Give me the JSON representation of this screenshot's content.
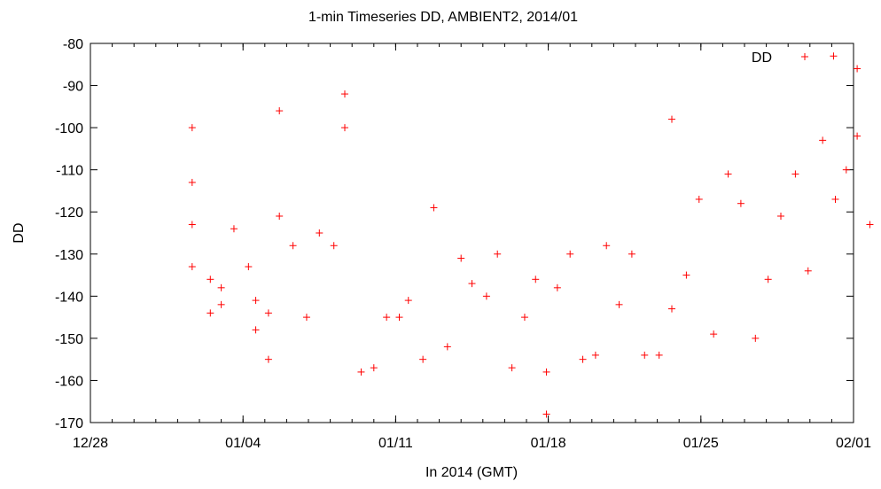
{
  "chart_data": {
    "type": "scatter",
    "title": "1-min Timeseries DD, AMBIENT2, 2014/01",
    "xlabel": "In 2014 (GMT)",
    "ylabel": "DD",
    "x_ticks": [
      "12/28",
      "01/04",
      "01/11",
      "01/18",
      "01/25",
      "02/01"
    ],
    "y_ticks": [
      -80,
      -90,
      -100,
      -110,
      -120,
      -130,
      -140,
      -150,
      -160,
      -170
    ],
    "xlim": [
      "2013-12-28",
      "2014-02-01"
    ],
    "ylim": [
      -170,
      -80
    ],
    "grid": false,
    "legend_position": "top-right",
    "marker": "+",
    "color": "#ff0000",
    "series": [
      {
        "name": "DD",
        "points": [
          {
            "x": "2014-01-01 16:00",
            "y": -133.0
          },
          {
            "x": "2014-01-01 16:00",
            "y": -113.0
          },
          {
            "x": "2014-01-01 16:00",
            "y": -100.0
          },
          {
            "x": "2014-01-01 16:00",
            "y": -123.0
          },
          {
            "x": "2014-01-02 12:00",
            "y": -144.0
          },
          {
            "x": "2014-01-02 12:00",
            "y": -136.0
          },
          {
            "x": "2014-01-03 00:00",
            "y": -138.0
          },
          {
            "x": "2014-01-03 00:00",
            "y": -142.0
          },
          {
            "x": "2014-01-03 14:00",
            "y": -124.0
          },
          {
            "x": "2014-01-04 06:00",
            "y": -133.0
          },
          {
            "x": "2014-01-04 14:00",
            "y": -141.0
          },
          {
            "x": "2014-01-04 14:00",
            "y": -148.0
          },
          {
            "x": "2014-01-05 04:00",
            "y": -155.0
          },
          {
            "x": "2014-01-05 04:00",
            "y": -144.0
          },
          {
            "x": "2014-01-05 16:00",
            "y": -121.0
          },
          {
            "x": "2014-01-05 16:00",
            "y": -96.0
          },
          {
            "x": "2014-01-06 07:00",
            "y": -128.0
          },
          {
            "x": "2014-01-06 22:00",
            "y": -145.0
          },
          {
            "x": "2014-01-07 12:00",
            "y": -125.0
          },
          {
            "x": "2014-01-08 04:00",
            "y": -128.0
          },
          {
            "x": "2014-01-08 16:00",
            "y": -92.0
          },
          {
            "x": "2014-01-08 16:00",
            "y": -100.0
          },
          {
            "x": "2014-01-09 10:00",
            "y": -158.0
          },
          {
            "x": "2014-01-10 00:00",
            "y": -157.0
          },
          {
            "x": "2014-01-10 14:00",
            "y": -145.0
          },
          {
            "x": "2014-01-11 04:00",
            "y": -145.0
          },
          {
            "x": "2014-01-11 14:00",
            "y": -141.0
          },
          {
            "x": "2014-01-12 06:00",
            "y": -155.0
          },
          {
            "x": "2014-01-12 18:00",
            "y": -119.0
          },
          {
            "x": "2014-01-13 09:00",
            "y": -152.0
          },
          {
            "x": "2014-01-14 00:00",
            "y": -131.0
          },
          {
            "x": "2014-01-14 12:00",
            "y": -137.0
          },
          {
            "x": "2014-01-15 04:00",
            "y": -140.0
          },
          {
            "x": "2014-01-15 16:00",
            "y": -130.0
          },
          {
            "x": "2014-01-16 08:00",
            "y": -157.0
          },
          {
            "x": "2014-01-16 22:00",
            "y": -145.0
          },
          {
            "x": "2014-01-17 10:00",
            "y": -136.0
          },
          {
            "x": "2014-01-17 22:00",
            "y": -158.0
          },
          {
            "x": "2014-01-17 22:00",
            "y": -168.0
          },
          {
            "x": "2014-01-18 10:00",
            "y": -138.0
          },
          {
            "x": "2014-01-19 00:00",
            "y": -130.0
          },
          {
            "x": "2014-01-19 14:00",
            "y": -155.0
          },
          {
            "x": "2014-01-20 04:00",
            "y": -154.0
          },
          {
            "x": "2014-01-20 16:00",
            "y": -128.0
          },
          {
            "x": "2014-01-21 06:00",
            "y": -142.0
          },
          {
            "x": "2014-01-21 20:00",
            "y": -130.0
          },
          {
            "x": "2014-01-22 10:00",
            "y": -154.0
          },
          {
            "x": "2014-01-23 02:00",
            "y": -154.0
          },
          {
            "x": "2014-01-23 16:00",
            "y": -143.0
          },
          {
            "x": "2014-01-23 16:00",
            "y": -98.0
          },
          {
            "x": "2014-01-24 08:00",
            "y": -135.0
          },
          {
            "x": "2014-01-24 22:00",
            "y": -117.0
          },
          {
            "x": "2014-01-25 14:00",
            "y": -149.0
          },
          {
            "x": "2014-01-26 06:00",
            "y": -111.0
          },
          {
            "x": "2014-01-26 20:00",
            "y": -118.0
          },
          {
            "x": "2014-01-27 12:00",
            "y": -150.0
          },
          {
            "x": "2014-01-28 02:00",
            "y": -136.0
          },
          {
            "x": "2014-01-28 16:00",
            "y": -121.0
          },
          {
            "x": "2014-01-29 08:00",
            "y": -111.0
          },
          {
            "x": "2014-01-29 22:00",
            "y": -134.0
          },
          {
            "x": "2014-01-30 14:00",
            "y": -103.0
          },
          {
            "x": "2014-01-31 02:00",
            "y": -83.0
          },
          {
            "x": "2014-01-31 04:00",
            "y": -117.0
          },
          {
            "x": "2014-01-31 16:00",
            "y": -110.0
          },
          {
            "x": "2014-02-01 04:00",
            "y": -102.0
          },
          {
            "x": "2014-02-01 04:00",
            "y": -86.0
          },
          {
            "x": "2014-02-01 18:00",
            "y": -123.0
          }
        ]
      }
    ]
  }
}
